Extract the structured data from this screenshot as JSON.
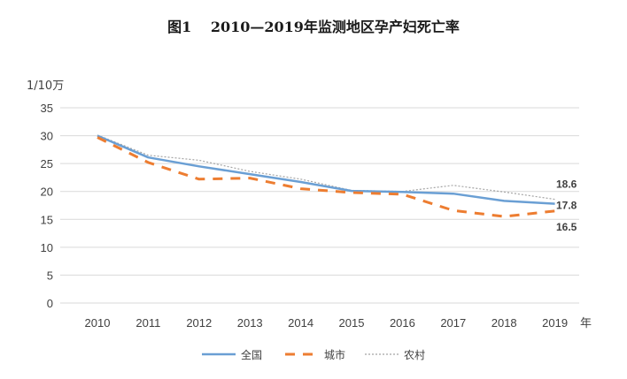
{
  "chart_data": {
    "type": "line",
    "title": "图1　 2010—2019年监测地区孕产妇死亡率",
    "ylabel": "1/10万",
    "xlabel": "年",
    "categories": [
      "2010",
      "2011",
      "2012",
      "2013",
      "2014",
      "2015",
      "2016",
      "2017",
      "2018",
      "2019"
    ],
    "ylim": [
      0,
      35
    ],
    "yticks": [
      "0",
      "5",
      "10",
      "15",
      "20",
      "25",
      "30",
      "35"
    ],
    "grid": true,
    "legend_position": "bottom",
    "series": [
      {
        "name": "全国",
        "values": [
          30.0,
          26.1,
          24.5,
          23.1,
          21.7,
          20.1,
          19.9,
          19.6,
          18.3,
          17.8
        ],
        "color": "#6a9fd4",
        "style": "solid"
      },
      {
        "name": "城市",
        "values": [
          29.7,
          25.2,
          22.2,
          22.4,
          20.5,
          19.8,
          19.5,
          16.6,
          15.5,
          16.5
        ],
        "color": "#ed7d31",
        "style": "dashed"
      },
      {
        "name": "农村",
        "values": [
          30.1,
          26.5,
          25.6,
          23.6,
          22.2,
          20.2,
          20.0,
          21.1,
          19.9,
          18.6
        ],
        "color": "#a5a5a5",
        "style": "dotted"
      }
    ],
    "annotations": [
      {
        "text": "18.6",
        "series": "农村",
        "category": "2019"
      },
      {
        "text": "17.8",
        "series": "全国",
        "category": "2019"
      },
      {
        "text": "16.5",
        "series": "城市",
        "category": "2019"
      }
    ]
  }
}
